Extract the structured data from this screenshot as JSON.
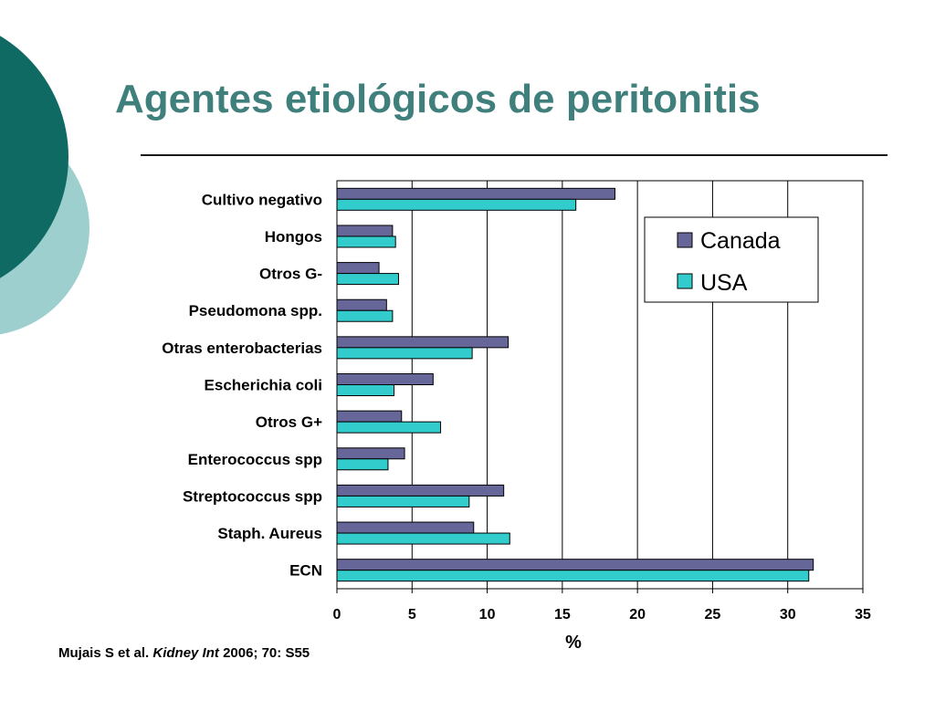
{
  "slide": {
    "title": "Agentes etiológicos de peritonitis",
    "citation": {
      "authors": "Mujais S et al.",
      "journal": "Kidney Int",
      "rest": "2006; 70: S55"
    }
  },
  "colors": {
    "title": "#3f7f7c",
    "deco_dark": "#0e6a63",
    "deco_light": "#9ecfcf",
    "canada": "#666699",
    "usa": "#33cccc"
  },
  "chart_data": {
    "type": "bar",
    "orientation": "horizontal",
    "categories": [
      "Cultivo negativo",
      "Hongos",
      "Otros G-",
      "Pseudomona spp.",
      "Otras enterobacterias",
      "Escherichia coli",
      "Otros G+",
      "Enterococcus spp",
      "Streptococcus spp",
      "Staph. Aureus",
      "ECN"
    ],
    "series": [
      {
        "name": "Canada",
        "color": "#666699",
        "values": [
          18.5,
          3.7,
          2.8,
          3.3,
          11.4,
          6.4,
          4.3,
          4.5,
          11.1,
          9.1,
          31.7
        ]
      },
      {
        "name": "USA",
        "color": "#33cccc",
        "values": [
          15.9,
          3.9,
          4.1,
          3.7,
          9.0,
          3.8,
          6.9,
          3.4,
          8.8,
          11.5,
          31.4
        ]
      }
    ],
    "xlabel": "%",
    "ylabel": "",
    "xlim": [
      0,
      35
    ],
    "xticks": [
      0,
      5,
      10,
      15,
      20,
      25,
      30,
      35
    ],
    "grid": "vertical",
    "legend": "top-right"
  }
}
